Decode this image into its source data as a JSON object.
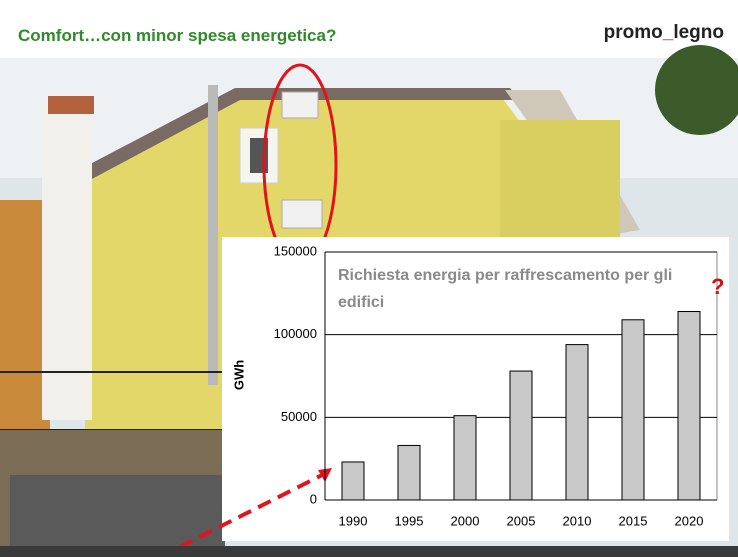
{
  "slide": {
    "title": "Comfort…con minor spesa energetica?",
    "logo": [
      "promo",
      "_",
      "legno"
    ]
  },
  "chart_data": {
    "type": "bar",
    "title": "Richiesta energia per raffrescamento per gli edifici",
    "annotation": "?",
    "y_label": "GWh",
    "categories": [
      "1990",
      "1995",
      "2000",
      "2005",
      "2010",
      "2015",
      "2020"
    ],
    "values": [
      23000,
      33000,
      51000,
      78000,
      94000,
      109000,
      114000
    ],
    "color": "#c8c8c8",
    "ylim": [
      0,
      150000
    ],
    "yticks": [
      0,
      50000,
      100000,
      150000
    ],
    "grid": true
  }
}
